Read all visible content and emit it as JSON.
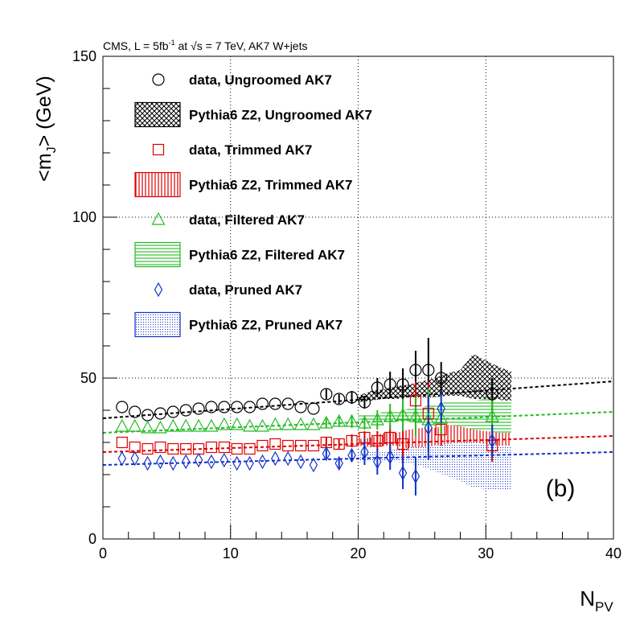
{
  "header": {
    "pre": "CMS, L = 5fb",
    "sup": "-1",
    "mid": " at √s = 7 TeV, AK7 W+jets"
  },
  "panel_label": "(b)",
  "colors": {
    "ungroomed": "#000000",
    "trimmed": "#dd0000",
    "filtered": "#22bb22",
    "pruned": "#1030cc"
  },
  "chart_data": {
    "type": "scatter",
    "xlabel": "N",
    "xlabel_sub": "PV",
    "ylabel_pre": "<m",
    "ylabel_sub": "J",
    "ylabel_post": "> (GeV)",
    "xlim": [
      0,
      40
    ],
    "ylim": [
      0,
      150
    ],
    "x_ticks": [
      "0",
      "10",
      "20",
      "30",
      "40"
    ],
    "y_ticks": [
      "0",
      "50",
      "100",
      "150"
    ],
    "grid": true,
    "legend_position": "top-left",
    "x": [
      1.5,
      2.5,
      3.5,
      4.5,
      5.5,
      6.5,
      7.5,
      8.5,
      9.5,
      10.5,
      11.5,
      12.5,
      13.5,
      14.5,
      15.5,
      16.5,
      17.5,
      18.5,
      19.5,
      20.5,
      21.5,
      22.5,
      23.5,
      24.5,
      25.5,
      26.5,
      30.5
    ],
    "series": [
      {
        "name": "data, Ungroomed AK7",
        "key": "ungroomed",
        "marker": "circle",
        "values": [
          41,
          39.5,
          38.5,
          39,
          39.5,
          40,
          40.5,
          41,
          41,
          41,
          41,
          42,
          42,
          42,
          41,
          40.5,
          45,
          43.5,
          44,
          42.5,
          47,
          48,
          48,
          52.5,
          52.5,
          50,
          45
        ],
        "errors": [
          0.5,
          0.5,
          0.5,
          0.5,
          0.5,
          0.5,
          0.5,
          0.5,
          0.5,
          0.5,
          0.5,
          0.5,
          0.5,
          0.5,
          0.5,
          0.5,
          1.5,
          1.5,
          2,
          2,
          3,
          4,
          5,
          6,
          10,
          5,
          5
        ]
      },
      {
        "name": "data, Trimmed AK7",
        "key": "trimmed",
        "marker": "square",
        "values": [
          30,
          28.5,
          28,
          28.5,
          28,
          28,
          28,
          28.5,
          28.5,
          28,
          28,
          29,
          29.5,
          29,
          29,
          29,
          30,
          29.5,
          30.5,
          31.5,
          30.5,
          31.5,
          29.5,
          43,
          39,
          34,
          29
        ],
        "errors": [
          0.5,
          0.5,
          0.5,
          0.5,
          0.5,
          0.5,
          0.5,
          0.5,
          0.5,
          0.5,
          0.5,
          0.5,
          0.5,
          0.5,
          0.5,
          0.5,
          1.5,
          1.5,
          2,
          2,
          3,
          4,
          5,
          6,
          10,
          5,
          5
        ]
      },
      {
        "name": "data, Filtered AK7",
        "key": "filtered",
        "marker": "triangle",
        "values": [
          35,
          35,
          34.5,
          34.5,
          35,
          35,
          35,
          35,
          35.5,
          35.5,
          35,
          35,
          35.5,
          35.5,
          35.5,
          35.5,
          36,
          36.5,
          36.5,
          36,
          37,
          38,
          38.5,
          38,
          37,
          37.5,
          38
        ],
        "errors": [
          0.5,
          0.5,
          0.5,
          0.5,
          0.5,
          0.5,
          0.5,
          0.5,
          0.5,
          0.5,
          0.5,
          0.5,
          0.5,
          0.5,
          0.5,
          0.5,
          1.5,
          1.5,
          2,
          2,
          3,
          4,
          5,
          6,
          10,
          5,
          5
        ]
      },
      {
        "name": "data, Pruned AK7",
        "key": "pruned",
        "marker": "diamond",
        "values": [
          25,
          25,
          23.5,
          24,
          23.5,
          24,
          24.5,
          24,
          24.5,
          23.5,
          23.5,
          24,
          25,
          25,
          24,
          23,
          26.5,
          23.5,
          26,
          27,
          24,
          25.5,
          20.5,
          19.5,
          34.5,
          40.5,
          30.5
        ],
        "errors": [
          0.5,
          0.5,
          0.5,
          0.5,
          0.5,
          0.5,
          0.5,
          0.5,
          0.5,
          0.5,
          0.5,
          0.5,
          0.5,
          0.5,
          0.5,
          0.5,
          1.5,
          1.5,
          2,
          4,
          4,
          4,
          5,
          6,
          10,
          5,
          5
        ]
      }
    ],
    "mc_bands": [
      {
        "name": "Pythia6 Z2, Ungroomed AK7",
        "key": "ungroomed",
        "pattern": "crosshatch",
        "x": [
          20,
          21,
          22,
          23,
          24,
          25,
          26,
          27,
          28,
          29,
          30,
          31,
          32
        ],
        "center": [
          43.5,
          44.5,
          45,
          45.5,
          46,
          46.5,
          47,
          48,
          48.5,
          50.5,
          49.5,
          48.5,
          47
        ],
        "half_width": [
          1,
          1.5,
          1.5,
          2,
          2,
          2.5,
          3,
          3.5,
          4,
          7,
          6,
          5,
          5
        ]
      },
      {
        "name": "Pythia6 Z2, Trimmed AK7",
        "key": "trimmed",
        "pattern": "vertical",
        "x": [
          20,
          21,
          22,
          23,
          24,
          25,
          26,
          27,
          28,
          29,
          30,
          31,
          32
        ],
        "center": [
          30,
          30,
          31,
          31,
          31,
          30.5,
          30,
          29.5,
          30,
          29,
          29,
          28,
          27
        ],
        "half_width": [
          1,
          1.5,
          2,
          2,
          3,
          4,
          4.5,
          6,
          6.5,
          7,
          8,
          8,
          8
        ]
      },
      {
        "name": "Pythia6 Z2, Filtered AK7",
        "key": "filtered",
        "pattern": "horizontal",
        "x": [
          20,
          21,
          22,
          23,
          24,
          25,
          26,
          27,
          28,
          29,
          30,
          31,
          32
        ],
        "center": [
          37.5,
          37.5,
          38,
          38,
          38.5,
          38.5,
          39,
          39,
          39,
          38.5,
          38.5,
          38,
          38
        ],
        "half_width": [
          1,
          1,
          1.5,
          1.5,
          2,
          2.5,
          3,
          3.5,
          4,
          4.5,
          5,
          5,
          5
        ]
      },
      {
        "name": "Pythia6 Z2, Pruned AK7",
        "key": "pruned",
        "pattern": "dots",
        "x": [
          20,
          21,
          22,
          23,
          24,
          25,
          26,
          27,
          28,
          29,
          30,
          31,
          32
        ],
        "center": [
          25.5,
          25.5,
          25.5,
          26,
          26,
          25.5,
          25,
          24.5,
          24,
          23,
          22.5,
          22,
          22
        ],
        "half_width": [
          1,
          1.5,
          1.5,
          2,
          2.5,
          3,
          4,
          5,
          6,
          7,
          7,
          7,
          7
        ]
      }
    ],
    "fits": [
      {
        "key": "ungroomed",
        "x": [
          0,
          40
        ],
        "y": [
          37.5,
          49
        ]
      },
      {
        "key": "trimmed",
        "x": [
          0,
          40
        ],
        "y": [
          27,
          32
        ]
      },
      {
        "key": "filtered",
        "x": [
          0,
          40
        ],
        "y": [
          33,
          39.5
        ]
      },
      {
        "key": "pruned",
        "x": [
          0,
          40
        ],
        "y": [
          23,
          27
        ]
      }
    ]
  }
}
